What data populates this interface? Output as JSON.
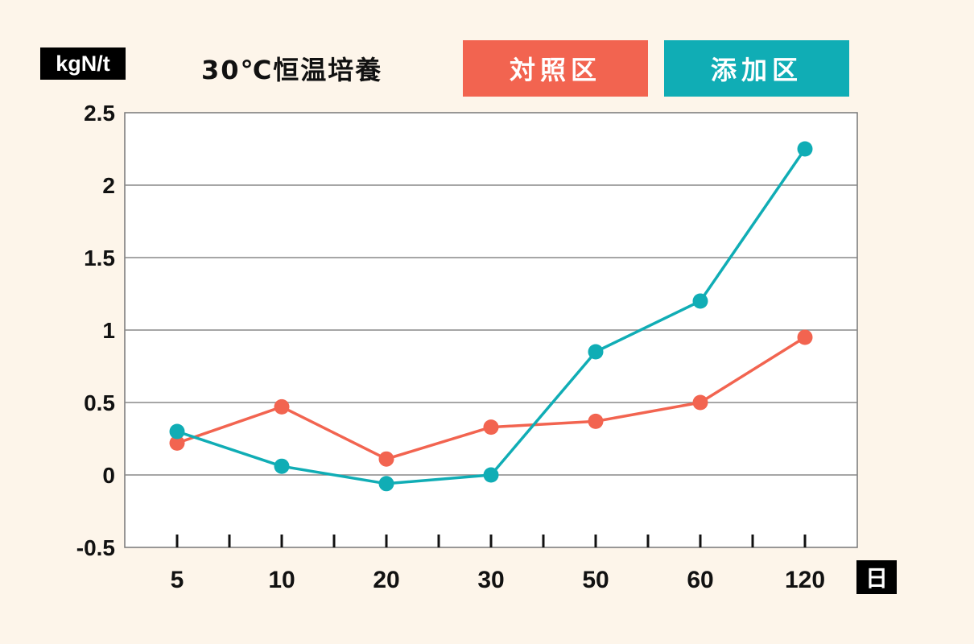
{
  "ylabel": "kgN/t",
  "xlabel": "日",
  "title": "30℃恒温培養",
  "colors": {
    "background": "#fdf5ea",
    "control": "#f26450",
    "treated": "#10adb5",
    "grid": "#888888",
    "label_badge": "#000000"
  },
  "legend": [
    {
      "name": "対照区",
      "color": "#f26450"
    },
    {
      "name": "添加区",
      "color": "#10adb5"
    }
  ],
  "chart_data": {
    "type": "line",
    "title": "30℃恒温培養",
    "xlabel": "日",
    "ylabel": "kgN/t",
    "categories": [
      "5",
      "10",
      "20",
      "30",
      "50",
      "60",
      "120"
    ],
    "ylim": [
      -0.5,
      2.5
    ],
    "yticks": [
      "2.5",
      "2",
      "1.5",
      "1",
      "0.5",
      "0",
      "-0.5"
    ],
    "grid": true,
    "legend_position": "top",
    "series": [
      {
        "name": "対照区",
        "color": "#f26450",
        "values": [
          0.22,
          0.47,
          0.11,
          0.33,
          0.37,
          0.5,
          0.95
        ]
      },
      {
        "name": "添加区",
        "color": "#10adb5",
        "values": [
          0.3,
          0.06,
          -0.06,
          0.0,
          0.85,
          1.2,
          2.25
        ]
      }
    ]
  }
}
